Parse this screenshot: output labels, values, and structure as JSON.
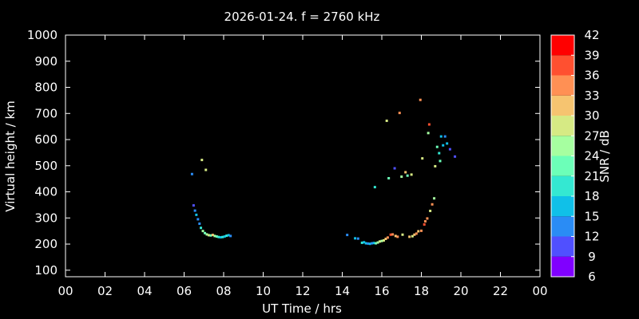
{
  "chart_data": {
    "type": "scatter",
    "title": "2026-01-24. f = 2760 kHz",
    "xlabel": "UT Time / hrs",
    "ylabel": "Virtual height / km",
    "colorbar_label": "SNR / dB",
    "xlim": [
      0,
      24
    ],
    "ylim": [
      75,
      1000
    ],
    "x_ticks": [
      "00",
      "02",
      "04",
      "06",
      "08",
      "10",
      "12",
      "14",
      "16",
      "18",
      "20",
      "22",
      "00"
    ],
    "y_ticks": [
      100,
      200,
      300,
      400,
      500,
      600,
      700,
      800,
      900,
      1000
    ],
    "colorbar_ticks": [
      6,
      9,
      12,
      15,
      18,
      21,
      24,
      27,
      30,
      33,
      36,
      39,
      42
    ],
    "colorbar_colors": [
      "#8000ff",
      "#5050ff",
      "#2a8cf5",
      "#10c0e8",
      "#34e8d2",
      "#6cffb8",
      "#a6ffa0",
      "#d6ea84",
      "#f6c470",
      "#ff9054",
      "#ff5030",
      "#ff0000"
    ],
    "background": "#000000",
    "grid": false,
    "points": [
      [
        6.4,
        468,
        12
      ],
      [
        6.9,
        522,
        27
      ],
      [
        7.1,
        484,
        27
      ],
      [
        6.48,
        348,
        9
      ],
      [
        6.55,
        328,
        12
      ],
      [
        6.62,
        312,
        15
      ],
      [
        6.7,
        295,
        12
      ],
      [
        6.78,
        278,
        12
      ],
      [
        6.85,
        262,
        18
      ],
      [
        6.95,
        250,
        24
      ],
      [
        7.05,
        242,
        21
      ],
      [
        7.15,
        237,
        24
      ],
      [
        7.25,
        234,
        27
      ],
      [
        7.35,
        233,
        21
      ],
      [
        7.45,
        235,
        30
      ],
      [
        7.55,
        231,
        24
      ],
      [
        7.65,
        229,
        21
      ],
      [
        7.75,
        227,
        18
      ],
      [
        7.85,
        226,
        15
      ],
      [
        7.95,
        227,
        18
      ],
      [
        8.05,
        229,
        15
      ],
      [
        8.15,
        232,
        18
      ],
      [
        8.25,
        234,
        15
      ],
      [
        8.35,
        231,
        12
      ],
      [
        14.25,
        235,
        12
      ],
      [
        14.65,
        222,
        15
      ],
      [
        14.8,
        221,
        12
      ],
      [
        15.0,
        205,
        18
      ],
      [
        15.1,
        207,
        15
      ],
      [
        15.2,
        203,
        15
      ],
      [
        15.3,
        202,
        12
      ],
      [
        15.4,
        201,
        15
      ],
      [
        15.5,
        203,
        12
      ],
      [
        15.6,
        204,
        15
      ],
      [
        15.65,
        418,
        18
      ],
      [
        15.7,
        203,
        21
      ],
      [
        15.8,
        206,
        24
      ],
      [
        15.9,
        210,
        27
      ],
      [
        16.0,
        212,
        24
      ],
      [
        16.1,
        214,
        27
      ],
      [
        16.2,
        220,
        30
      ],
      [
        16.3,
        225,
        33
      ],
      [
        16.25,
        672,
        27
      ],
      [
        16.35,
        452,
        21
      ],
      [
        16.45,
        236,
        36
      ],
      [
        16.55,
        237,
        33
      ],
      [
        16.65,
        490,
        9
      ],
      [
        16.7,
        231,
        30
      ],
      [
        16.8,
        228,
        33
      ],
      [
        16.9,
        702,
        33
      ],
      [
        17.0,
        458,
        24
      ],
      [
        17.05,
        236,
        27
      ],
      [
        17.2,
        475,
        30
      ],
      [
        17.3,
        462,
        21
      ],
      [
        17.4,
        228,
        30
      ],
      [
        17.5,
        466,
        27
      ],
      [
        17.55,
        230,
        27
      ],
      [
        17.65,
        236,
        30
      ],
      [
        17.75,
        240,
        33
      ],
      [
        17.85,
        249,
        30
      ],
      [
        17.95,
        752,
        33
      ],
      [
        18.0,
        251,
        33
      ],
      [
        18.05,
        528,
        27
      ],
      [
        18.15,
        275,
        36
      ],
      [
        18.2,
        287,
        33
      ],
      [
        18.3,
        298,
        33
      ],
      [
        18.35,
        625,
        24
      ],
      [
        18.4,
        658,
        36
      ],
      [
        18.45,
        327,
        27
      ],
      [
        18.55,
        352,
        33
      ],
      [
        18.65,
        375,
        24
      ],
      [
        18.7,
        498,
        27
      ],
      [
        18.8,
        572,
        21
      ],
      [
        18.9,
        548,
        18
      ],
      [
        18.95,
        518,
        21
      ],
      [
        19.0,
        612,
        15
      ],
      [
        19.1,
        578,
        15
      ],
      [
        19.2,
        612,
        12
      ],
      [
        19.3,
        585,
        15
      ],
      [
        19.45,
        563,
        9
      ],
      [
        19.7,
        535,
        9
      ]
    ]
  }
}
